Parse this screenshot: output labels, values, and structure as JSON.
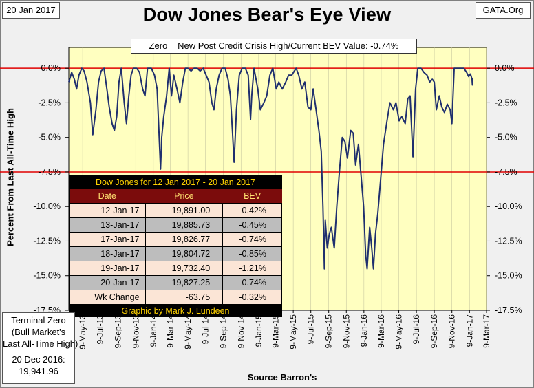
{
  "header": {
    "date": "20 Jan 2017",
    "source": "GATA.Org",
    "title": "Dow Jones Bear's Eye View",
    "subtitle": "Zero = New Post Credit Crisis High/Current BEV Value:  -0.74%"
  },
  "terminal_zero": {
    "line1": "Terminal Zero",
    "line2": "(Bull Market's",
    "line3": "Last All-Time High)",
    "line4": "20 Dec 2016:",
    "line5": "19,941.96"
  },
  "table": {
    "title": "Dow Jones for  12 Jan 2017 - 20 Jan 2017",
    "headers": [
      "Date",
      "Price",
      "BEV"
    ],
    "rows": [
      [
        "12-Jan-17",
        "19,891.00",
        "-0.42%"
      ],
      [
        "13-Jan-17",
        "19,885.73",
        "-0.45%"
      ],
      [
        "17-Jan-17",
        "19,826.77",
        "-0.74%"
      ],
      [
        "18-Jan-17",
        "19,804.72",
        "-0.85%"
      ],
      [
        "19-Jan-17",
        "19,732.40",
        "-1.21%"
      ],
      [
        "20-Jan-17",
        "19,827.25",
        "-0.74%"
      ],
      [
        "Wk Change",
        "-63.75",
        "-0.32%"
      ]
    ],
    "credit": "Graphic by Mark J. Lundeen"
  },
  "chart_data": {
    "type": "line",
    "ylabel": "Percent From Last All-Time High",
    "xlabel": "Source Barron's",
    "ylim": [
      -17.5,
      1.5
    ],
    "yticks": [
      0,
      -2.5,
      -5,
      -7.5,
      -10,
      -12.5,
      -15,
      -17.5
    ],
    "ytick_labels": [
      "0.0%",
      "-2.5%",
      "-5.0%",
      "-7.5%",
      "-10.0%",
      "-12.5%",
      "-15.0%",
      "-17.5%"
    ],
    "xlim": [
      "2013-03-22",
      "2017-03-09"
    ],
    "xtick_labels": [
      "9-May-13",
      "9-Jul-13",
      "9-Sep-13",
      "9-Nov-13",
      "9-Jan-14",
      "9-Mar-14",
      "9-May-14",
      "9-Jul-14",
      "9-Sep-14",
      "9-Nov-14",
      "9-Jan-15",
      "9-Mar-15",
      "9-May-15",
      "9-Jul-15",
      "9-Sep-15",
      "9-Nov-15",
      "9-Jan-16",
      "9-Mar-16",
      "9-May-16",
      "9-Jul-16",
      "9-Sep-16",
      "9-Nov-16",
      "9-Jan-17",
      "9-Mar-17"
    ],
    "reference_lines": [
      0,
      -7.5
    ],
    "colors": {
      "plot_bg": "#ffffc0",
      "line": "#1f2f6e",
      "ref_line": "#e00000"
    },
    "series": [
      {
        "x": [
          "2013-03-22",
          "2013-04-01",
          "2013-04-10",
          "2013-04-18",
          "2013-04-26",
          "2013-05-06",
          "2013-05-14",
          "2013-05-24",
          "2013-06-05",
          "2013-06-13",
          "2013-06-24",
          "2013-07-03",
          "2013-07-12",
          "2013-07-22",
          "2013-08-01",
          "2013-08-09",
          "2013-08-19",
          "2013-08-27",
          "2013-09-04",
          "2013-09-12",
          "2013-09-20",
          "2013-09-30",
          "2013-10-08",
          "2013-10-16",
          "2013-10-24",
          "2013-11-01",
          "2013-11-12",
          "2013-11-22",
          "2013-12-03",
          "2013-12-11",
          "2013-12-20",
          "2014-01-02",
          "2014-01-13",
          "2014-01-22",
          "2014-02-03",
          "2014-02-07",
          "2014-02-14",
          "2014-02-24",
          "2014-03-05",
          "2014-03-13",
          "2014-03-21",
          "2014-04-01",
          "2014-04-11",
          "2014-04-21",
          "2014-04-30",
          "2014-05-09",
          "2014-05-20",
          "2014-05-30",
          "2014-06-10",
          "2014-06-20",
          "2014-07-01",
          "2014-07-11",
          "2014-07-21",
          "2014-07-31",
          "2014-08-07",
          "2014-08-15",
          "2014-08-25",
          "2014-09-04",
          "2014-09-15",
          "2014-09-25",
          "2014-10-03",
          "2014-10-10",
          "2014-10-16",
          "2014-10-24",
          "2014-11-03",
          "2014-11-13",
          "2014-11-24",
          "2014-12-04",
          "2014-12-12",
          "2014-12-16",
          "2014-12-24",
          "2015-01-06",
          "2015-01-15",
          "2015-01-27",
          "2015-02-06",
          "2015-02-17",
          "2015-02-27",
          "2015-03-11",
          "2015-03-20",
          "2015-04-01",
          "2015-04-13",
          "2015-04-23",
          "2015-05-04",
          "2015-05-13",
          "2015-05-19",
          "2015-05-28",
          "2015-06-08",
          "2015-06-18",
          "2015-06-29",
          "2015-07-09",
          "2015-07-17",
          "2015-07-27",
          "2015-08-06",
          "2015-08-14",
          "2015-08-20",
          "2015-08-25",
          "2015-08-28",
          "2015-09-04",
          "2015-09-11",
          "2015-09-18",
          "2015-09-28",
          "2015-10-07",
          "2015-10-16",
          "2015-10-26",
          "2015-11-04",
          "2015-11-13",
          "2015-11-24",
          "2015-12-03",
          "2015-12-11",
          "2015-12-21",
          "2015-12-31",
          "2016-01-08",
          "2016-01-15",
          "2016-01-20",
          "2016-01-29",
          "2016-02-05",
          "2016-02-11",
          "2016-02-18",
          "2016-02-26",
          "2016-03-07",
          "2016-03-17",
          "2016-03-29",
          "2016-04-08",
          "2016-04-20",
          "2016-04-29",
          "2016-05-10",
          "2016-05-19",
          "2016-05-31",
          "2016-06-09",
          "2016-06-17",
          "2016-06-27",
          "2016-07-06",
          "2016-07-14",
          "2016-07-25",
          "2016-08-04",
          "2016-08-15",
          "2016-08-24",
          "2016-09-02",
          "2016-09-09",
          "2016-09-16",
          "2016-09-26",
          "2016-10-05",
          "2016-10-14",
          "2016-10-24",
          "2016-11-03",
          "2016-11-09",
          "2016-11-17",
          "2016-11-28",
          "2016-12-07",
          "2016-12-15",
          "2016-12-20",
          "2016-12-30",
          "2017-01-06",
          "2017-01-12",
          "2017-01-13",
          "2017-01-17",
          "2017-01-18",
          "2017-01-19",
          "2017-01-20"
        ],
        "y": [
          -1.0,
          -0.3,
          -0.8,
          -1.5,
          -0.5,
          0.0,
          -0.2,
          -1.0,
          -2.5,
          -4.8,
          -3.0,
          -1.0,
          -0.2,
          0.0,
          -1.5,
          -2.8,
          -4.0,
          -4.5,
          -3.5,
          -1.0,
          0.0,
          -2.5,
          -4.0,
          -2.0,
          -0.5,
          0.0,
          0.0,
          -0.3,
          -1.5,
          -2.0,
          0.0,
          0.0,
          -0.5,
          -1.5,
          -7.3,
          -5.0,
          -3.5,
          -2.0,
          0.0,
          -2.0,
          -0.5,
          -1.5,
          -2.5,
          -1.0,
          0.0,
          0.0,
          -0.2,
          0.0,
          0.0,
          -0.2,
          0.0,
          -0.5,
          -1.0,
          -2.5,
          -3.0,
          -1.5,
          -0.5,
          0.0,
          0.0,
          -0.8,
          -2.0,
          -4.5,
          -6.8,
          -3.0,
          -0.5,
          0.0,
          0.0,
          -0.5,
          -3.7,
          -2.0,
          0.0,
          -1.5,
          -3.0,
          -2.5,
          -2.0,
          -0.5,
          0.0,
          -1.5,
          -1.0,
          -1.5,
          -1.0,
          -0.5,
          -0.5,
          -0.2,
          0.0,
          -0.5,
          -1.5,
          -1.0,
          -2.8,
          -3.0,
          -1.5,
          -3.0,
          -4.5,
          -6.0,
          -10.0,
          -14.5,
          -11.0,
          -13.0,
          -12.0,
          -11.5,
          -13.0,
          -10.0,
          -7.5,
          -5.0,
          -5.3,
          -6.5,
          -4.5,
          -4.7,
          -7.0,
          -5.5,
          -8.0,
          -10.0,
          -13.5,
          -14.5,
          -11.5,
          -13.0,
          -14.5,
          -12.0,
          -10.5,
          -8.0,
          -5.5,
          -3.8,
          -2.5,
          -3.0,
          -2.5,
          -3.8,
          -3.5,
          -4.0,
          -2.2,
          -2.0,
          -6.4,
          -1.5,
          0.0,
          0.0,
          -0.3,
          -0.5,
          -1.0,
          -0.8,
          -1.0,
          -3.0,
          -2.0,
          -2.8,
          -3.2,
          -2.6,
          -3.0,
          -4.0,
          0.0,
          0.0,
          0.0,
          0.0,
          0.0,
          -0.3,
          -0.6,
          -0.42,
          -0.45,
          -0.74,
          -0.85,
          -1.21,
          -0.74
        ]
      }
    ]
  }
}
